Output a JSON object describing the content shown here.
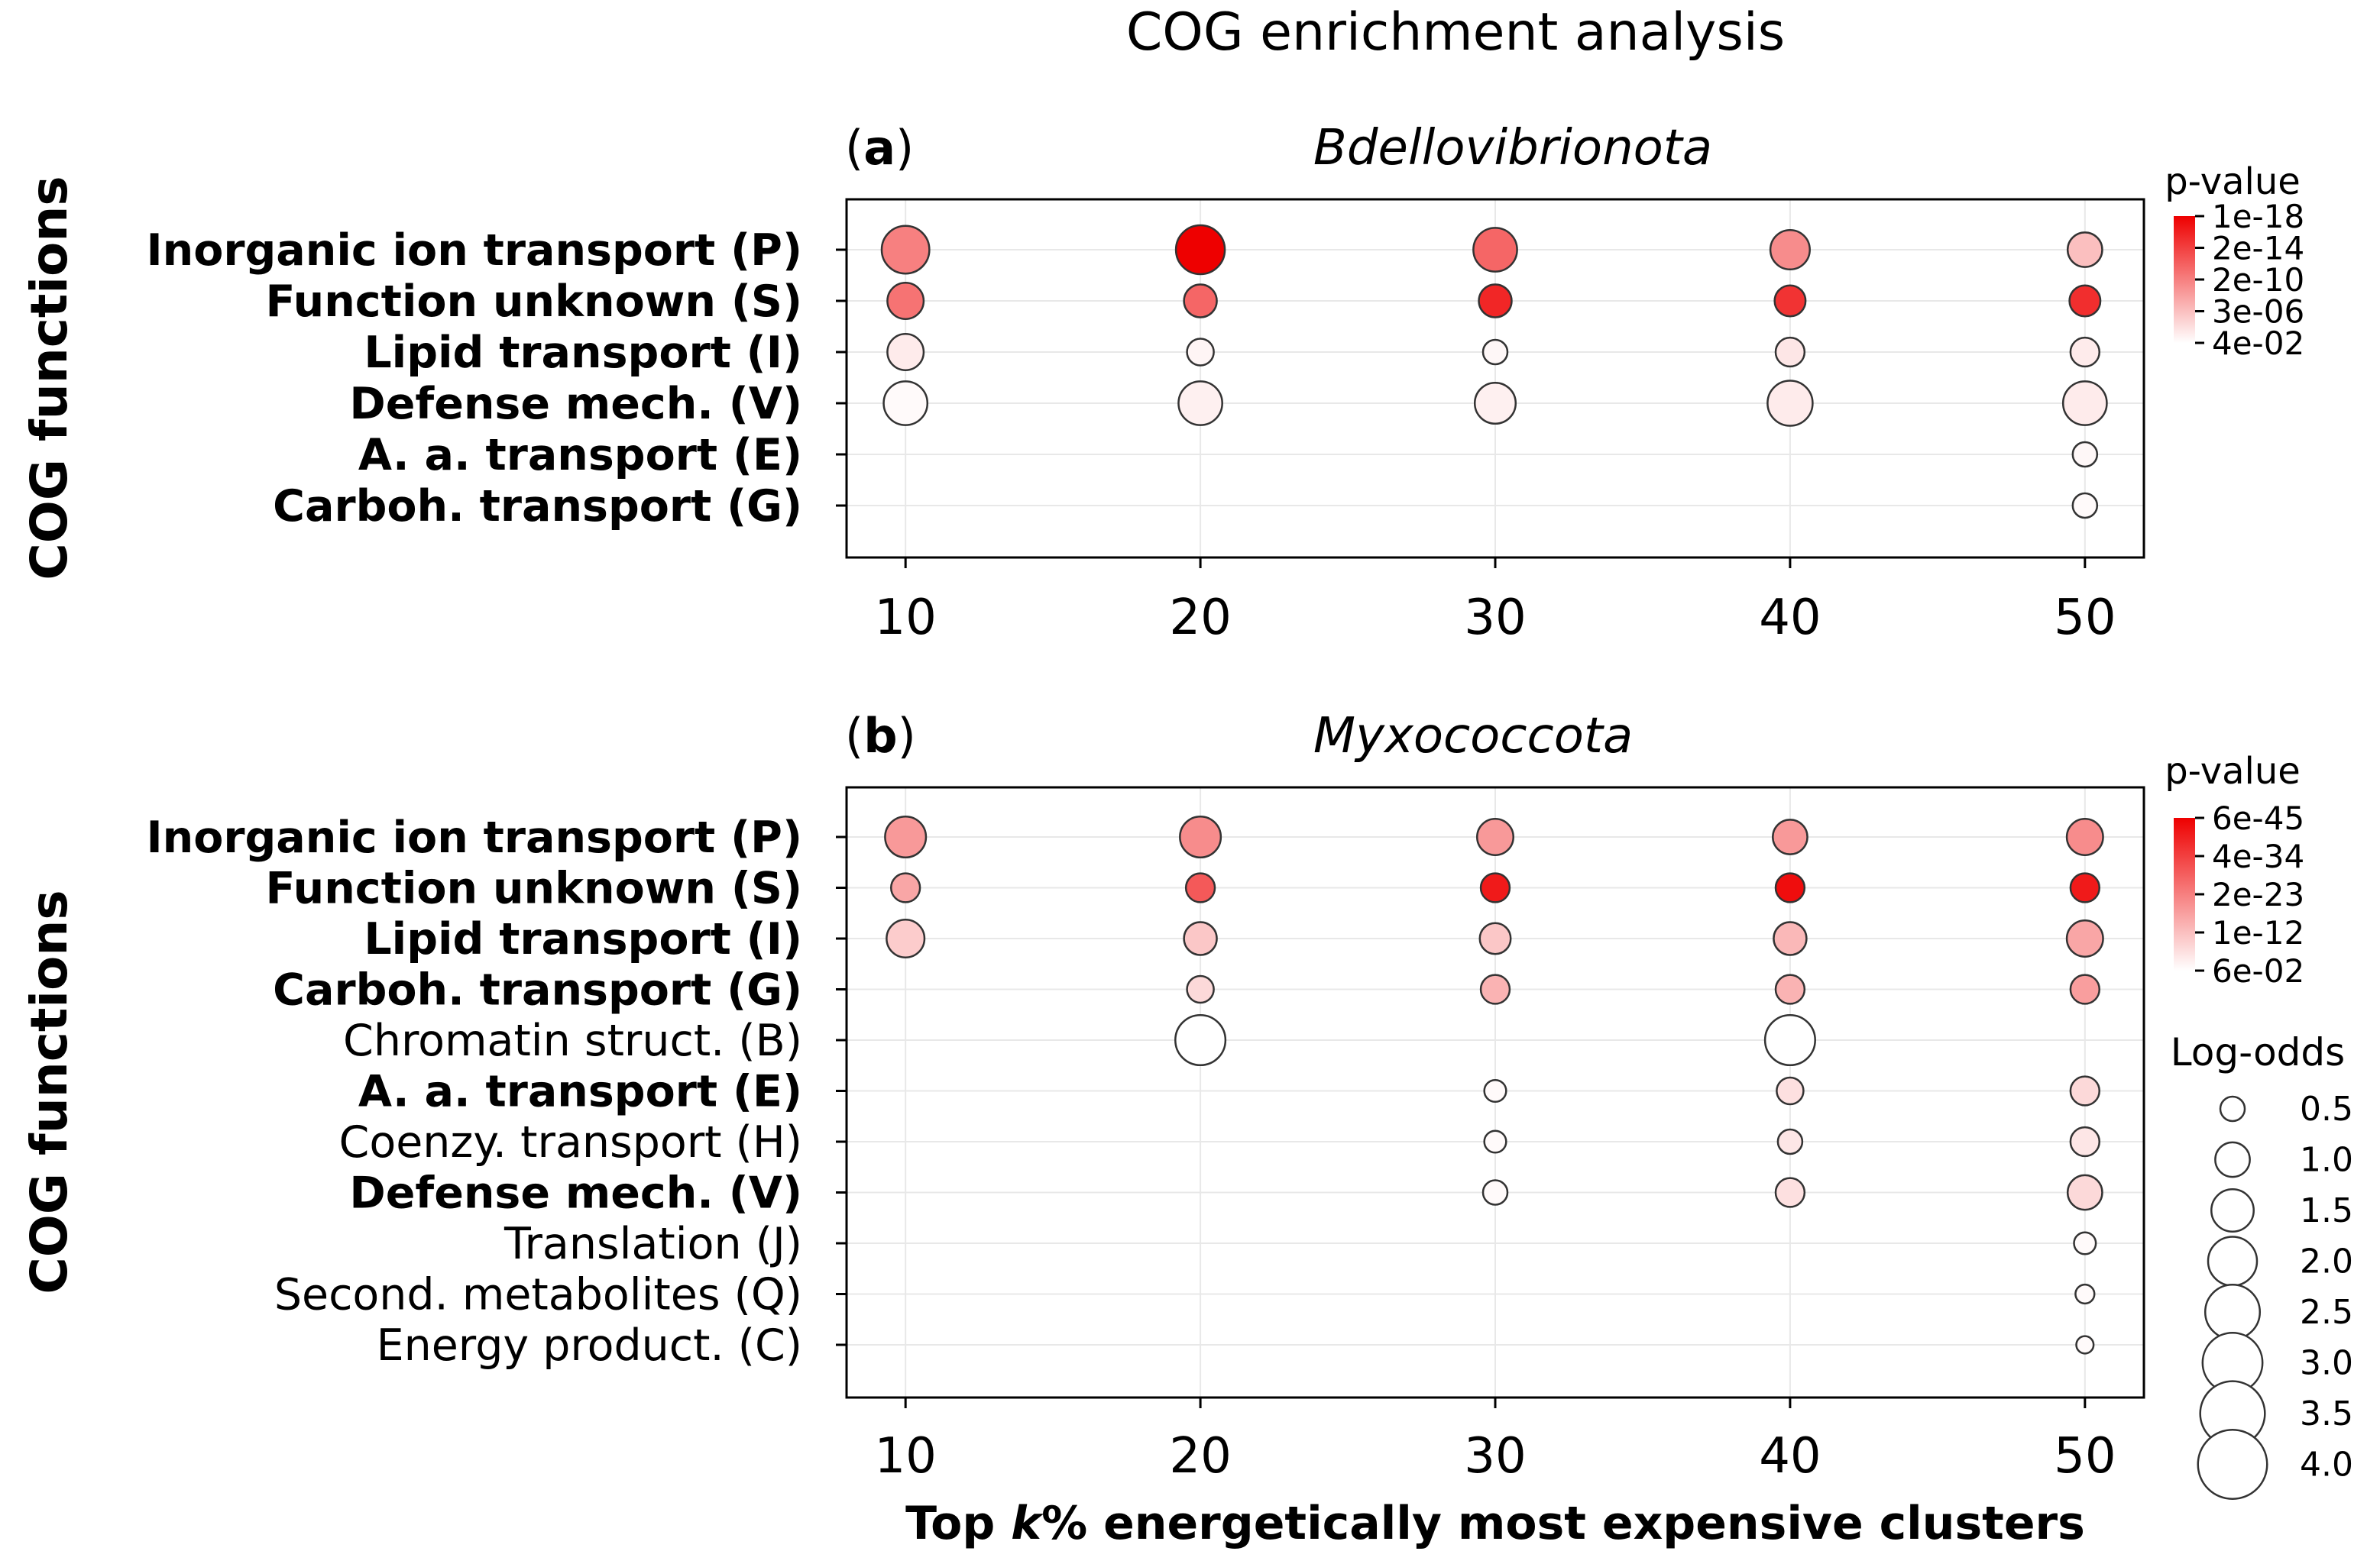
{
  "chart_data": {
    "title": "COG enrichment analysis",
    "xlabel_prefix": "Top ",
    "xlabel_k": "k",
    "xlabel_suffix": "% energetically most expensive clusters",
    "panels": [
      {
        "id": "a",
        "label_open": "(",
        "label_letter": "a",
        "label_close": ")",
        "title": "Bdellovibrionota",
        "type": "scatter",
        "x_ticks": [
          10,
          20,
          30,
          40,
          50
        ],
        "xlim": [
          8,
          52
        ],
        "ylabel": "COG functions",
        "categories": [
          {
            "label": "Inorganic ion transport (P)",
            "bold": true
          },
          {
            "label": "Function unknown (S)",
            "bold": true
          },
          {
            "label": "Lipid transport (I)",
            "bold": true
          },
          {
            "label": "Defense mech. (V)",
            "bold": true
          },
          {
            "label": "A. a. transport (E)",
            "bold": true
          },
          {
            "label": "Carboh. transport (G)",
            "bold": true
          }
        ],
        "colorbar": {
          "title": "p-value",
          "ticks": [
            "1e-18",
            "2e-14",
            "2e-10",
            "3e-06",
            "4e-02"
          ]
        },
        "points": [
          {
            "x": 10,
            "row": 0,
            "log_odds": 1.9,
            "sig": 0.5
          },
          {
            "x": 20,
            "row": 0,
            "log_odds": 2.0,
            "sig": 1.0
          },
          {
            "x": 30,
            "row": 0,
            "log_odds": 1.6,
            "sig": 0.6
          },
          {
            "x": 40,
            "row": 0,
            "log_odds": 1.3,
            "sig": 0.45
          },
          {
            "x": 50,
            "row": 0,
            "log_odds": 1.0,
            "sig": 0.25
          },
          {
            "x": 10,
            "row": 1,
            "log_odds": 1.1,
            "sig": 0.55
          },
          {
            "x": 20,
            "row": 1,
            "log_odds": 0.9,
            "sig": 0.6
          },
          {
            "x": 30,
            "row": 1,
            "log_odds": 0.9,
            "sig": 0.85
          },
          {
            "x": 40,
            "row": 1,
            "log_odds": 0.8,
            "sig": 0.8
          },
          {
            "x": 50,
            "row": 1,
            "log_odds": 0.8,
            "sig": 0.82
          },
          {
            "x": 10,
            "row": 2,
            "log_odds": 1.1,
            "sig": 0.08
          },
          {
            "x": 20,
            "row": 2,
            "log_odds": 0.6,
            "sig": 0.04
          },
          {
            "x": 30,
            "row": 2,
            "log_odds": 0.5,
            "sig": 0.03
          },
          {
            "x": 40,
            "row": 2,
            "log_odds": 0.7,
            "sig": 0.1
          },
          {
            "x": 50,
            "row": 2,
            "log_odds": 0.7,
            "sig": 0.08
          },
          {
            "x": 10,
            "row": 3,
            "log_odds": 1.6,
            "sig": 0.02
          },
          {
            "x": 20,
            "row": 3,
            "log_odds": 1.6,
            "sig": 0.06
          },
          {
            "x": 30,
            "row": 3,
            "log_odds": 1.4,
            "sig": 0.06
          },
          {
            "x": 40,
            "row": 3,
            "log_odds": 1.7,
            "sig": 0.08
          },
          {
            "x": 50,
            "row": 3,
            "log_odds": 1.6,
            "sig": 0.08
          },
          {
            "x": 50,
            "row": 4,
            "log_odds": 0.5,
            "sig": 0.03
          },
          {
            "x": 50,
            "row": 5,
            "log_odds": 0.5,
            "sig": 0.02
          }
        ]
      },
      {
        "id": "b",
        "label_open": "(",
        "label_letter": "b",
        "label_close": ")",
        "title": "Myxococcota",
        "type": "scatter",
        "x_ticks": [
          10,
          20,
          30,
          40,
          50
        ],
        "xlim": [
          8,
          52
        ],
        "ylabel": "COG functions",
        "categories": [
          {
            "label": "Inorganic ion transport (P)",
            "bold": true
          },
          {
            "label": "Function unknown (S)",
            "bold": true
          },
          {
            "label": "Lipid transport (I)",
            "bold": true
          },
          {
            "label": "Carboh. transport (G)",
            "bold": true
          },
          {
            "label": "Chromatin struct. (B)",
            "bold": false
          },
          {
            "label": "A. a. transport (E)",
            "bold": true
          },
          {
            "label": "Coenzy. transport (H)",
            "bold": false
          },
          {
            "label": "Defense mech. (V)",
            "bold": true
          },
          {
            "label": "Translation (J)",
            "bold": false
          },
          {
            "label": "Second. metabolites (Q)",
            "bold": false
          },
          {
            "label": "Energy product. (C)",
            "bold": false
          }
        ],
        "colorbar": {
          "title": "p-value",
          "ticks": [
            "6e-45",
            "4e-34",
            "2e-23",
            "1e-12",
            "6e-02"
          ]
        },
        "points": [
          {
            "x": 10,
            "row": 0,
            "log_odds": 1.4,
            "sig": 0.4
          },
          {
            "x": 20,
            "row": 0,
            "log_odds": 1.4,
            "sig": 0.45
          },
          {
            "x": 30,
            "row": 0,
            "log_odds": 1.1,
            "sig": 0.4
          },
          {
            "x": 40,
            "row": 0,
            "log_odds": 1.0,
            "sig": 0.4
          },
          {
            "x": 50,
            "row": 0,
            "log_odds": 1.1,
            "sig": 0.45
          },
          {
            "x": 10,
            "row": 1,
            "log_odds": 0.7,
            "sig": 0.35
          },
          {
            "x": 20,
            "row": 1,
            "log_odds": 0.7,
            "sig": 0.65
          },
          {
            "x": 30,
            "row": 1,
            "log_odds": 0.7,
            "sig": 0.9
          },
          {
            "x": 40,
            "row": 1,
            "log_odds": 0.7,
            "sig": 0.95
          },
          {
            "x": 50,
            "row": 1,
            "log_odds": 0.7,
            "sig": 0.9
          },
          {
            "x": 10,
            "row": 2,
            "log_odds": 1.2,
            "sig": 0.2
          },
          {
            "x": 20,
            "row": 2,
            "log_odds": 0.9,
            "sig": 0.22
          },
          {
            "x": 30,
            "row": 2,
            "log_odds": 0.8,
            "sig": 0.22
          },
          {
            "x": 40,
            "row": 2,
            "log_odds": 0.9,
            "sig": 0.28
          },
          {
            "x": 50,
            "row": 2,
            "log_odds": 1.1,
            "sig": 0.35
          },
          {
            "x": 20,
            "row": 3,
            "log_odds": 0.6,
            "sig": 0.15
          },
          {
            "x": 30,
            "row": 3,
            "log_odds": 0.7,
            "sig": 0.3
          },
          {
            "x": 40,
            "row": 3,
            "log_odds": 0.7,
            "sig": 0.3
          },
          {
            "x": 50,
            "row": 3,
            "log_odds": 0.7,
            "sig": 0.38
          },
          {
            "x": 20,
            "row": 4,
            "log_odds": 2.1,
            "sig": 0.0
          },
          {
            "x": 40,
            "row": 4,
            "log_odds": 2.1,
            "sig": 0.0
          },
          {
            "x": 30,
            "row": 5,
            "log_odds": 0.4,
            "sig": 0.02
          },
          {
            "x": 40,
            "row": 5,
            "log_odds": 0.6,
            "sig": 0.12
          },
          {
            "x": 50,
            "row": 5,
            "log_odds": 0.7,
            "sig": 0.15
          },
          {
            "x": 30,
            "row": 6,
            "log_odds": 0.4,
            "sig": 0.02
          },
          {
            "x": 40,
            "row": 6,
            "log_odds": 0.5,
            "sig": 0.1
          },
          {
            "x": 50,
            "row": 6,
            "log_odds": 0.7,
            "sig": 0.1
          },
          {
            "x": 30,
            "row": 7,
            "log_odds": 0.5,
            "sig": 0.02
          },
          {
            "x": 40,
            "row": 7,
            "log_odds": 0.7,
            "sig": 0.12
          },
          {
            "x": 50,
            "row": 7,
            "log_odds": 1.0,
            "sig": 0.15
          },
          {
            "x": 50,
            "row": 8,
            "log_odds": 0.4,
            "sig": 0.02
          },
          {
            "x": 50,
            "row": 9,
            "log_odds": 0.3,
            "sig": 0.02
          },
          {
            "x": 50,
            "row": 10,
            "log_odds": 0.25,
            "sig": 0.02
          }
        ]
      }
    ],
    "size_legend": {
      "title": "Log-odds",
      "entries": [
        "0.5",
        "1.0",
        "1.5",
        "2.0",
        "2.5",
        "3.0",
        "3.5",
        "4.0"
      ],
      "values": [
        0.5,
        1.0,
        1.5,
        2.0,
        2.5,
        3.0,
        3.5,
        4.0
      ]
    },
    "colors": {
      "high_significance": "#ee0000",
      "low_significance": "#ffffff",
      "marker_edge": "#333333",
      "grid": "#e8e8e8"
    }
  }
}
